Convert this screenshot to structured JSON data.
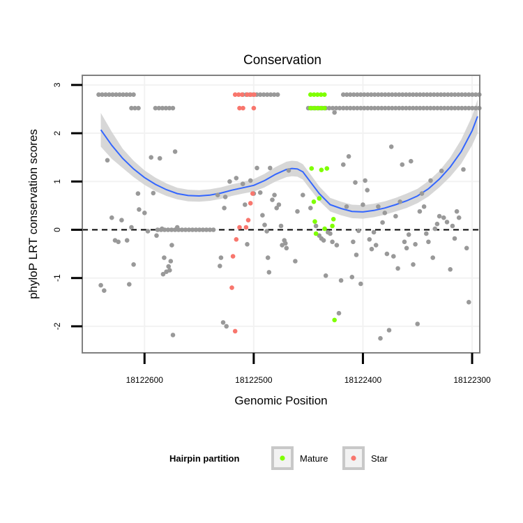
{
  "chart_data": {
    "type": "scatter",
    "title": "Conservation",
    "xlabel": "Genomic Position",
    "ylabel": "phyloP LRT conservation scores",
    "xlim": [
      18122657,
      18122293
    ],
    "ylim": [
      -2.55,
      3.2
    ],
    "x_reversed": true,
    "x_ticks": [
      18122600,
      18122500,
      18122400,
      18122300
    ],
    "x_tick_labels": [
      "18122600",
      "18122500",
      "18122400",
      "18122300"
    ],
    "y_ticks": [
      -2,
      -1,
      0,
      1,
      2,
      3
    ],
    "y_tick_labels": [
      "-2",
      "-1",
      "0",
      "1",
      "2",
      "3"
    ],
    "reference_line": {
      "y": 0,
      "style": "dashed"
    },
    "grid": true,
    "legend": {
      "title": "Hairpin partition",
      "position": "bottom",
      "entries": [
        {
          "label": "Mature",
          "color": "#7FFF00"
        },
        {
          "label": "Star",
          "color": "#F8766D"
        }
      ]
    },
    "colors": {
      "point": "#999999",
      "mature": "#7FFF00",
      "star": "#F8766D",
      "smooth": "#3366FF",
      "ribbon": "#D3D3D3",
      "panel_border": "#808080",
      "grid": "#F2F2F2"
    },
    "bands": [
      {
        "y": 2.8,
        "partition": "none",
        "x_ranges": [
          [
            18122642,
            18122610
          ],
          [
            18122510,
            18122475
          ],
          [
            18122418,
            18122293
          ]
        ]
      },
      {
        "y": 2.52,
        "partition": "none",
        "x_ranges": [
          [
            18122612,
            18122605
          ],
          [
            18122590,
            18122572
          ],
          [
            18122450,
            18122420
          ],
          [
            18122418,
            18122293
          ]
        ]
      },
      {
        "y": 2.8,
        "partition": "star",
        "x_ranges": [
          [
            18122517,
            18122508
          ],
          [
            18122506,
            18122498
          ]
        ]
      },
      {
        "y": 2.52,
        "partition": "star",
        "x_ranges": [
          [
            18122513,
            18122507
          ],
          [
            18122500,
            18122497
          ]
        ]
      },
      {
        "y": 2.8,
        "partition": "mature",
        "x_ranges": [
          [
            18122448,
            18122435
          ]
        ]
      },
      {
        "y": 2.52,
        "partition": "mature",
        "x_ranges": [
          [
            18122448,
            18122435
          ]
        ]
      },
      {
        "y": 0,
        "partition": "none",
        "x_ranges": [
          [
            18122588,
            18122535
          ]
        ]
      }
    ],
    "series": [
      {
        "name": "Other",
        "color": "#999999",
        "points": [
          [
            18122640,
            -1.15
          ],
          [
            18122637,
            -1.26
          ],
          [
            18122634,
            1.44
          ],
          [
            18122630,
            0.25
          ],
          [
            18122627,
            -0.22
          ],
          [
            18122624,
            -0.25
          ],
          [
            18122621,
            0.2
          ],
          [
            18122616,
            -0.22
          ],
          [
            18122614,
            -1.13
          ],
          [
            18122612,
            0.05
          ],
          [
            18122610,
            -0.72
          ],
          [
            18122606,
            0.75
          ],
          [
            18122605,
            0.42
          ],
          [
            18122600,
            0.35
          ],
          [
            18122597,
            -0.03
          ],
          [
            18122594,
            1.5
          ],
          [
            18122592,
            0.76
          ],
          [
            18122589,
            -0.12
          ],
          [
            18122586,
            1.48
          ],
          [
            18122584,
            0.02
          ],
          [
            18122583,
            -0.92
          ],
          [
            18122582,
            -0.58
          ],
          [
            18122580,
            -0.87
          ],
          [
            18122578,
            -0.76
          ],
          [
            18122577,
            -0.84
          ],
          [
            18122576,
            -0.65
          ],
          [
            18122575,
            -0.32
          ],
          [
            18122574,
            -2.18
          ],
          [
            18122572,
            1.62
          ],
          [
            18122570,
            0.05
          ],
          [
            18122533,
            0.72
          ],
          [
            18122531,
            -0.75
          ],
          [
            18122530,
            -0.58
          ],
          [
            18122528,
            -1.92
          ],
          [
            18122527,
            0.45
          ],
          [
            18122526,
            0.68
          ],
          [
            18122525,
            -2.0
          ],
          [
            18122522,
            1.0
          ],
          [
            18122516,
            1.07
          ],
          [
            18122510,
            0.95
          ],
          [
            18122508,
            0.52
          ],
          [
            18122506,
            -0.3
          ],
          [
            18122503,
            1.02
          ],
          [
            18122500,
            0.75
          ],
          [
            18122497,
            1.28
          ],
          [
            18122494,
            0.77
          ],
          [
            18122492,
            0.3
          ],
          [
            18122490,
            0.1
          ],
          [
            18122488,
            -0.03
          ],
          [
            18122487,
            -0.58
          ],
          [
            18122486,
            -0.88
          ],
          [
            18122485,
            1.28
          ],
          [
            18122483,
            0.62
          ],
          [
            18122481,
            0.72
          ],
          [
            18122479,
            0.45
          ],
          [
            18122477,
            0.52
          ],
          [
            18122475,
            0.08
          ],
          [
            18122474,
            -0.32
          ],
          [
            18122472,
            -0.22
          ],
          [
            18122471,
            -0.28
          ],
          [
            18122470,
            -0.38
          ],
          [
            18122468,
            1.23
          ],
          [
            18122462,
            -0.65
          ],
          [
            18122460,
            0.38
          ],
          [
            18122455,
            0.72
          ],
          [
            18122448,
            0.45
          ],
          [
            18122443,
            0.08
          ],
          [
            18122440,
            -0.12
          ],
          [
            18122438,
            -0.18
          ],
          [
            18122436,
            -0.22
          ],
          [
            18122434,
            -0.95
          ],
          [
            18122432,
            -0.05
          ],
          [
            18122430,
            -0.08
          ],
          [
            18122428,
            -0.25
          ],
          [
            18122426,
            2.43
          ],
          [
            18122424,
            -0.32
          ],
          [
            18122422,
            -1.73
          ],
          [
            18122420,
            -1.05
          ],
          [
            18122418,
            1.35
          ],
          [
            18122415,
            0.48
          ],
          [
            18122413,
            1.52
          ],
          [
            18122410,
            -0.98
          ],
          [
            18122409,
            -0.25
          ],
          [
            18122407,
            0.98
          ],
          [
            18122406,
            -0.52
          ],
          [
            18122404,
            -0.02
          ],
          [
            18122402,
            -1.12
          ],
          [
            18122400,
            0.52
          ],
          [
            18122398,
            1.02
          ],
          [
            18122396,
            0.82
          ],
          [
            18122394,
            -0.2
          ],
          [
            18122392,
            -0.4
          ],
          [
            18122390,
            -0.05
          ],
          [
            18122388,
            -0.32
          ],
          [
            18122386,
            0.48
          ],
          [
            18122384,
            -2.25
          ],
          [
            18122382,
            0.15
          ],
          [
            18122380,
            0.35
          ],
          [
            18122378,
            -0.5
          ],
          [
            18122376,
            -2.08
          ],
          [
            18122374,
            1.72
          ],
          [
            18122372,
            -0.55
          ],
          [
            18122370,
            0.28
          ],
          [
            18122368,
            -0.8
          ],
          [
            18122366,
            0.58
          ],
          [
            18122364,
            1.35
          ],
          [
            18122362,
            -0.25
          ],
          [
            18122360,
            -0.38
          ],
          [
            18122358,
            -0.1
          ],
          [
            18122356,
            1.42
          ],
          [
            18122354,
            -0.72
          ],
          [
            18122352,
            -0.3
          ],
          [
            18122350,
            -1.95
          ],
          [
            18122348,
            0.38
          ],
          [
            18122346,
            0.75
          ],
          [
            18122344,
            0.48
          ],
          [
            18122342,
            -0.08
          ],
          [
            18122340,
            -0.25
          ],
          [
            18122338,
            1.02
          ],
          [
            18122336,
            -0.58
          ],
          [
            18122334,
            0.02
          ],
          [
            18122332,
            0.12
          ],
          [
            18122330,
            0.28
          ],
          [
            18122328,
            1.22
          ],
          [
            18122326,
            0.25
          ],
          [
            18122323,
            0.16
          ],
          [
            18122320,
            -0.82
          ],
          [
            18122318,
            0.08
          ],
          [
            18122316,
            -0.18
          ],
          [
            18122314,
            0.38
          ],
          [
            18122312,
            0.25
          ],
          [
            18122308,
            1.25
          ],
          [
            18122305,
            -0.38
          ],
          [
            18122303,
            -1.5
          ]
        ]
      },
      {
        "name": "Mature",
        "color": "#7FFF00",
        "points": [
          [
            18122447,
            1.27
          ],
          [
            18122445,
            0.58
          ],
          [
            18122444,
            0.17
          ],
          [
            18122443,
            -0.08
          ],
          [
            18122440,
            0.65
          ],
          [
            18122438,
            1.24
          ],
          [
            18122435,
            0.02
          ],
          [
            18122433,
            1.27
          ],
          [
            18122428,
            0.08
          ],
          [
            18122427,
            0.22
          ],
          [
            18122426,
            -1.87
          ]
        ]
      },
      {
        "name": "Star",
        "color": "#F8766D",
        "points": [
          [
            18122513,
            0.05
          ],
          [
            18122516,
            -0.2
          ],
          [
            18122519,
            -0.55
          ],
          [
            18122520,
            -1.2
          ],
          [
            18122517,
            -2.1
          ],
          [
            18122507,
            0.05
          ],
          [
            18122505,
            0.2
          ],
          [
            18122503,
            0.55
          ],
          [
            18122501,
            0.75
          ]
        ]
      }
    ],
    "smooth": {
      "label": "loess",
      "x": [
        18122640,
        18122630,
        18122620,
        18122610,
        18122600,
        18122590,
        18122580,
        18122570,
        18122560,
        18122550,
        18122540,
        18122530,
        18122520,
        18122510,
        18122500,
        18122490,
        18122480,
        18122470,
        18122465,
        18122460,
        18122455,
        18122450,
        18122440,
        18122430,
        18122420,
        18122410,
        18122400,
        18122390,
        18122380,
        18122370,
        18122360,
        18122350,
        18122340,
        18122330,
        18122320,
        18122310,
        18122300,
        18122295
      ],
      "y": [
        2.07,
        1.75,
        1.48,
        1.26,
        1.08,
        0.94,
        0.83,
        0.75,
        0.71,
        0.7,
        0.72,
        0.76,
        0.82,
        0.87,
        0.92,
        1.02,
        1.15,
        1.25,
        1.27,
        1.26,
        1.2,
        1.05,
        0.75,
        0.52,
        0.44,
        0.38,
        0.37,
        0.4,
        0.45,
        0.52,
        0.6,
        0.7,
        0.85,
        1.05,
        1.3,
        1.62,
        2.05,
        2.35
      ],
      "ribbon_halfwidth": [
        0.35,
        0.28,
        0.2,
        0.17,
        0.15,
        0.14,
        0.13,
        0.12,
        0.12,
        0.12,
        0.12,
        0.12,
        0.12,
        0.12,
        0.13,
        0.14,
        0.15,
        0.16,
        0.16,
        0.16,
        0.16,
        0.16,
        0.15,
        0.14,
        0.14,
        0.14,
        0.14,
        0.14,
        0.14,
        0.14,
        0.15,
        0.15,
        0.16,
        0.17,
        0.2,
        0.25,
        0.3,
        0.35
      ]
    }
  }
}
